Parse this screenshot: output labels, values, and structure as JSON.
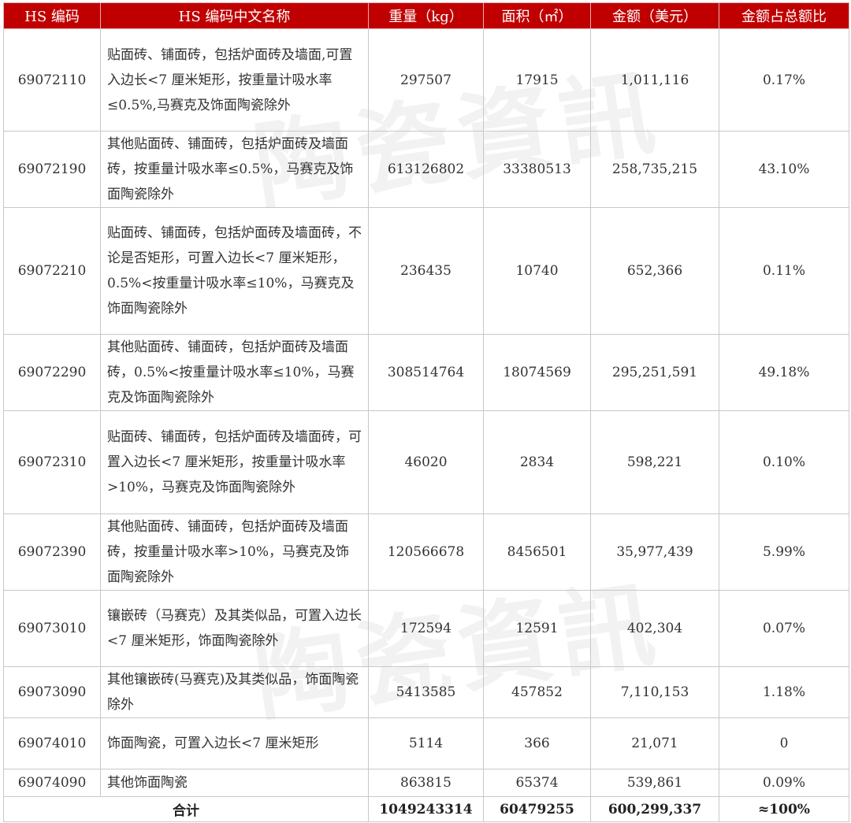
{
  "headers": [
    "HS 编码",
    "HS 编码中文名称",
    "重量（kg）",
    "面积（㎡）",
    "金额（美元）",
    "金额占总额比"
  ],
  "rows": [
    {
      "code": "69072110",
      "name": "贴面砖、铺面砖，包括炉面砖及墙面,可置入边长<7 厘米矩形，按重量计吸水率≤0.5%,马赛克及饰面陶瓷除外",
      "weight": "297507",
      "area": "17915",
      "amount": "1,011,116",
      "share": "0.17%"
    },
    {
      "code": "69072190",
      "name": "其他贴面砖、铺面砖，包括炉面砖及墙面砖，按重量计吸水率≤0.5%，马赛克及饰面陶瓷除外",
      "weight": "613126802",
      "area": "33380513",
      "amount": "258,735,215",
      "share": "43.10%"
    },
    {
      "code": "69072210",
      "name": "贴面砖、铺面砖，包括炉面砖及墙面砖，不论是否矩形，可置入边长<7 厘米矩形，0.5%<按重量计吸水率≤10%，马赛克及饰面陶瓷除外",
      "weight": "236435",
      "area": "10740",
      "amount": "652,366",
      "share": "0.11%"
    },
    {
      "code": "69072290",
      "name": "其他贴面砖、铺面砖，包括炉面砖及墙面砖，0.5%<按重量计吸水率≤10%，马赛克及饰面陶瓷除外",
      "weight": "308514764",
      "area": "18074569",
      "amount": "295,251,591",
      "share": "49.18%"
    },
    {
      "code": "69072310",
      "name": "贴面砖、铺面砖，包括炉面砖及墙面砖，可置入边长<7 厘米矩形，按重量计吸水率>10%，马赛克及饰面陶瓷除外",
      "weight": "46020",
      "area": "2834",
      "amount": "598,221",
      "share": "0.10%"
    },
    {
      "code": "69072390",
      "name": "其他贴面砖、铺面砖，包括炉面砖及墙面砖，按重量计吸水率>10%，马赛克及饰面陶瓷除外",
      "weight": "120566678",
      "area": "8456501",
      "amount": "35,977,439",
      "share": "5.99%"
    },
    {
      "code": "69073010",
      "name": "镶嵌砖（马赛克）及其类似品，可置入边长<7 厘米矩形，饰面陶瓷除外",
      "weight": "172594",
      "area": "12591",
      "amount": "402,304",
      "share": "0.07%"
    },
    {
      "code": "69073090",
      "name": "其他镶嵌砖(马赛克)及其类似品，饰面陶瓷除外",
      "weight": "5413585",
      "area": "457852",
      "amount": "7,110,153",
      "share": "1.18%"
    },
    {
      "code": "69074010",
      "name": "饰面陶瓷，可置入边长<7 厘米矩形",
      "weight": "5114",
      "area": "366",
      "amount": "21,071",
      "share": "0"
    },
    {
      "code": "69074090",
      "name": "其他饰面陶瓷",
      "weight": "863815",
      "area": "65374",
      "amount": "539,861",
      "share": "0.09%"
    }
  ],
  "total": {
    "label": "合计",
    "weight": "1049243314",
    "area": "60479255",
    "amount": "600,299,337",
    "share": "≈100%"
  },
  "watermark": "陶瓷資訊",
  "colors": {
    "header_bg": "#c00000"
  }
}
